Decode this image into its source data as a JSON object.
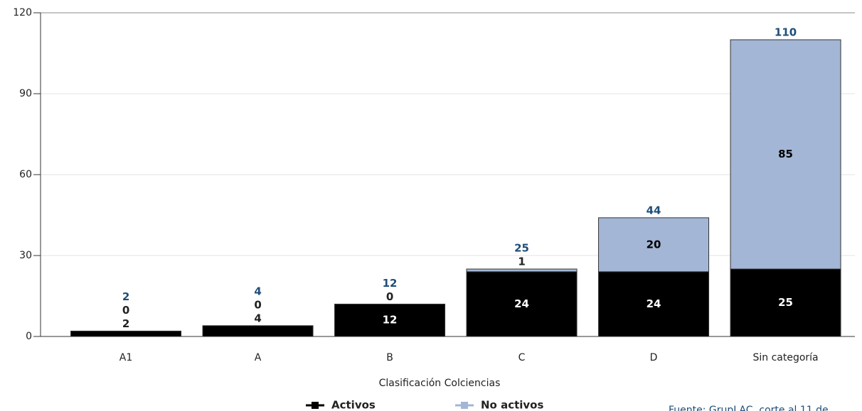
{
  "chart_data": {
    "type": "stacked-bar",
    "x_label": "Clasificación Colciencias",
    "categories": [
      "A1",
      "A",
      "B",
      "C",
      "D",
      "Sin categoría"
    ],
    "series": [
      {
        "name": "Activos",
        "color": "#000000",
        "values": [
          2,
          4,
          12,
          24,
          24,
          25
        ]
      },
      {
        "name": "No activos",
        "color": "#a3b6d6",
        "values": [
          0,
          0,
          0,
          1,
          20,
          85
        ]
      }
    ],
    "totals": [
      2,
      4,
      12,
      25,
      44,
      110
    ],
    "total_color": "#1f4e79",
    "ylim": [
      0,
      120
    ],
    "yticks": [
      0,
      30,
      60,
      90,
      120
    ],
    "grid": true,
    "source": "Fuente: GrupLAC, corte al 11 de"
  }
}
